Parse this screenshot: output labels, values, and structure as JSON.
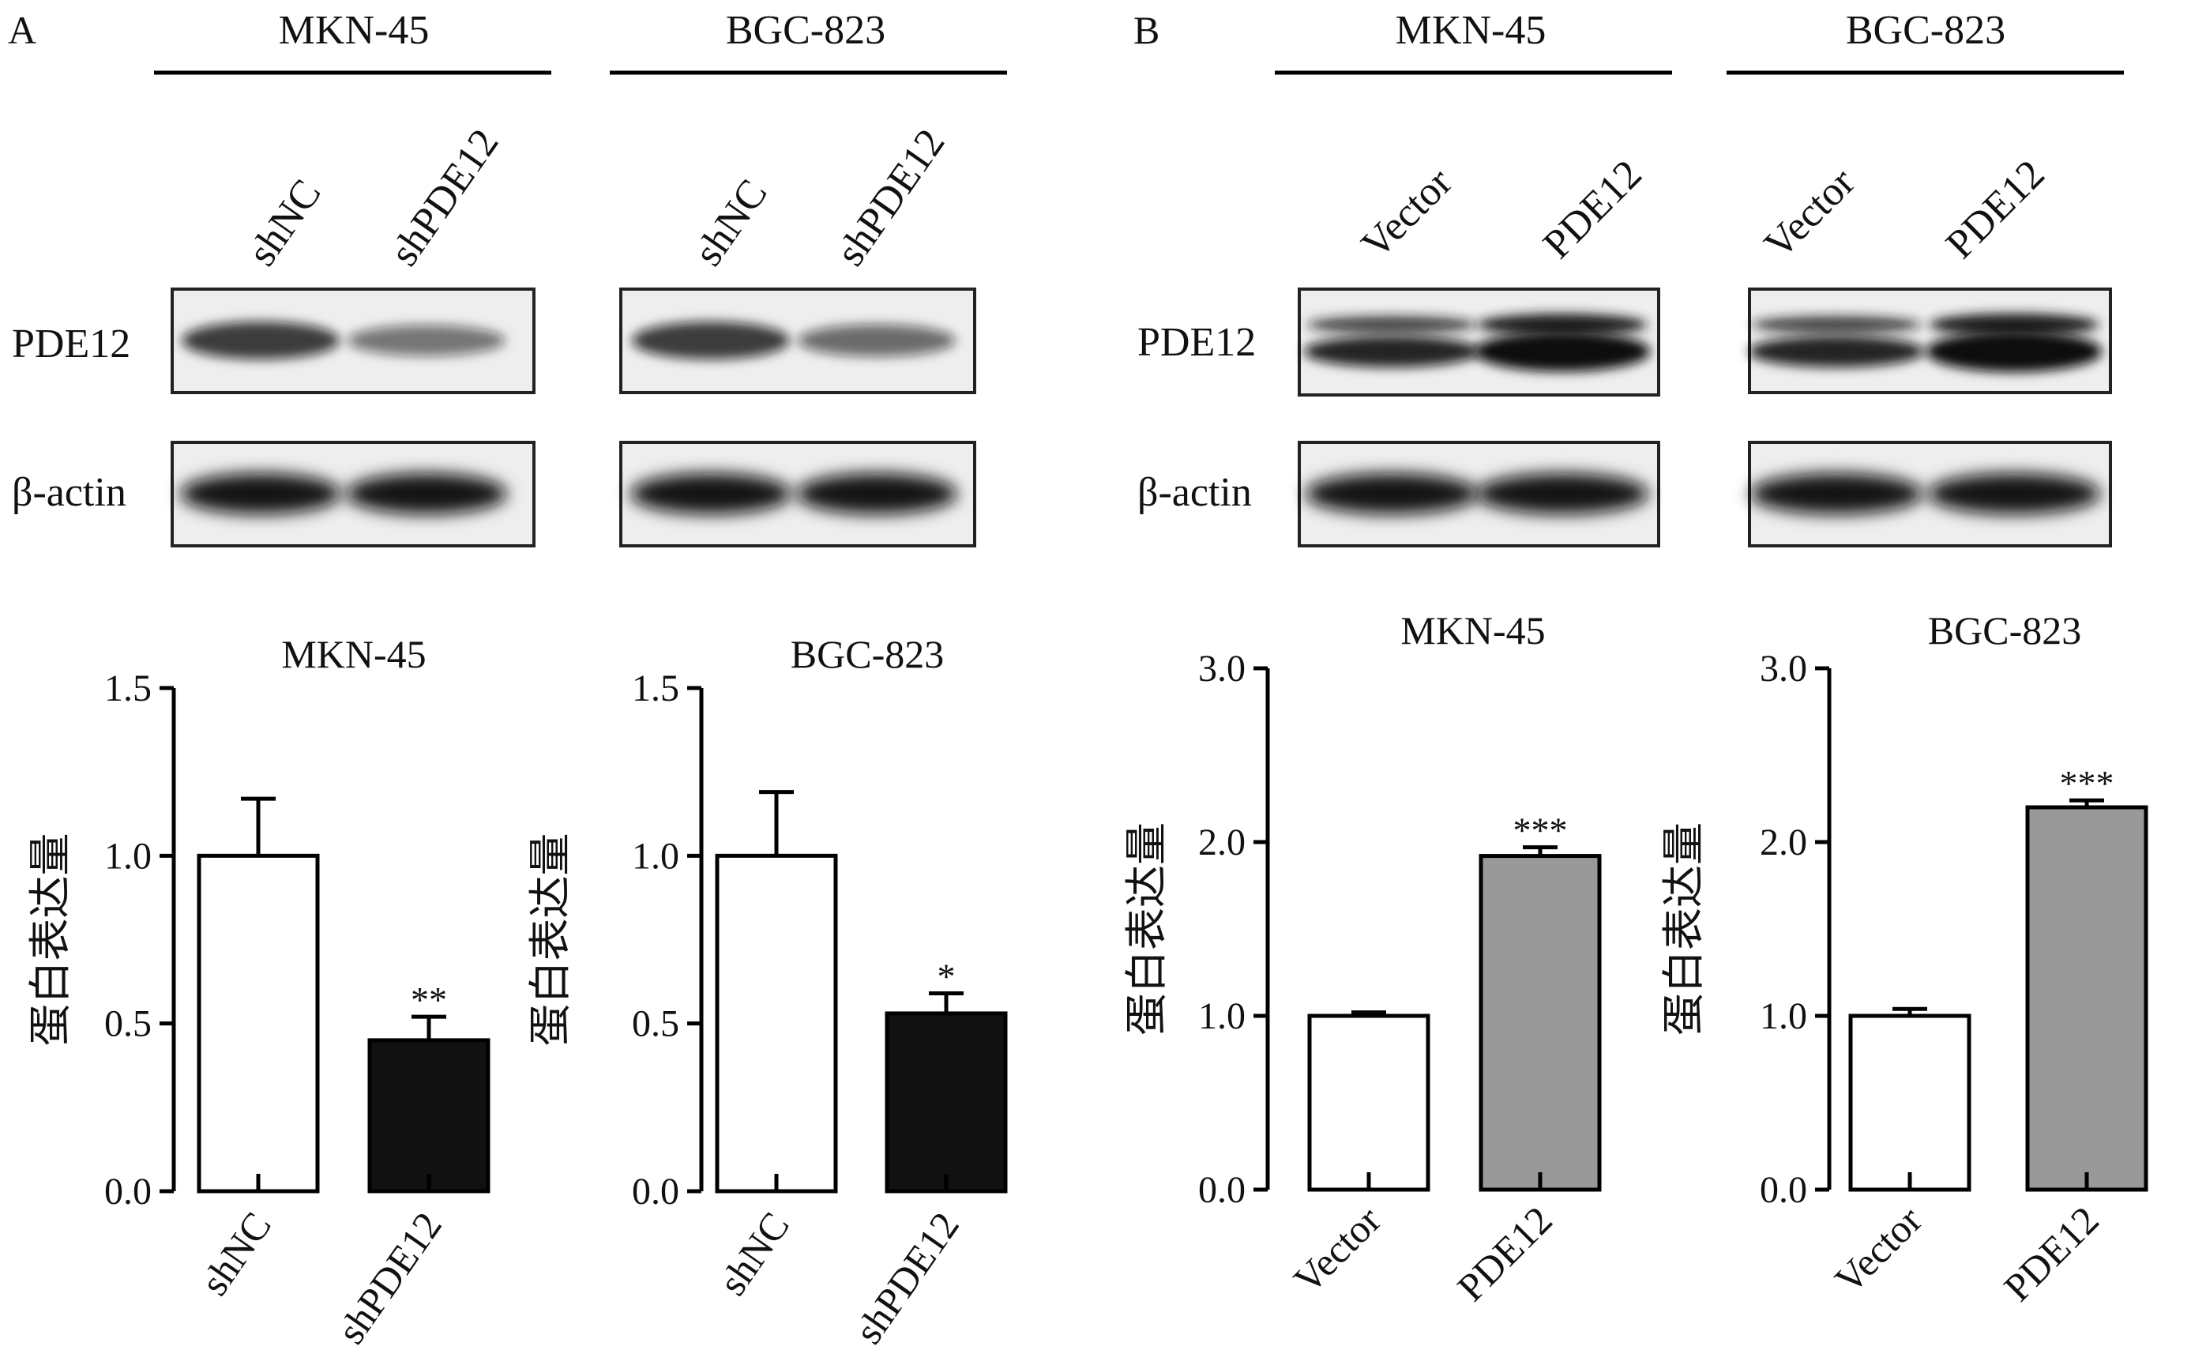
{
  "panels": [
    {
      "letter": "A",
      "cell_lines": [
        {
          "name": "MKN-45",
          "lanes": [
            "shNC",
            "shPDE12"
          ],
          "pde12_intensity": [
            1.0,
            0.45
          ],
          "pde12_doublet": false
        },
        {
          "name": "BGC-823",
          "lanes": [
            "shNC",
            "shPDE12"
          ],
          "pde12_intensity": [
            1.0,
            0.55
          ],
          "pde12_doublet": false
        }
      ]
    },
    {
      "letter": "B",
      "cell_lines": [
        {
          "name": "MKN-45",
          "lanes": [
            "Vector",
            "PDE12"
          ],
          "pde12_intensity": [
            1.0,
            1.9
          ],
          "pde12_doublet": true
        },
        {
          "name": "BGC-823",
          "lanes": [
            "Vector",
            "PDE12"
          ],
          "pde12_intensity": [
            1.0,
            2.2
          ],
          "pde12_doublet": true
        }
      ]
    }
  ],
  "blot_labels": {
    "target": "PDE12",
    "loading": "β-actin"
  },
  "colors": {
    "control_bar": "#ffffff",
    "knockdown_bar": "#111111",
    "overexpression_bar": "#999999",
    "axis": "#000000"
  },
  "chart_data": [
    {
      "type": "bar",
      "title": "MKN-45",
      "ylabel": "蛋白表达量",
      "xlabel": "",
      "ylim": [
        0,
        1.5
      ],
      "yticks": [
        "0.0",
        "0.5",
        "1.0",
        "1.5"
      ],
      "categories": [
        "shNC",
        "shPDE12"
      ],
      "values": [
        1.0,
        0.45
      ],
      "errors": [
        0.17,
        0.07
      ],
      "significance": [
        "",
        "**"
      ],
      "fills": [
        "#ffffff",
        "#111111"
      ]
    },
    {
      "type": "bar",
      "title": "BGC-823",
      "ylabel": "蛋白表达量",
      "xlabel": "",
      "ylim": [
        0,
        1.5
      ],
      "yticks": [
        "0.0",
        "0.5",
        "1.0",
        "1.5"
      ],
      "categories": [
        "shNC",
        "shPDE12"
      ],
      "values": [
        1.0,
        0.53
      ],
      "errors": [
        0.19,
        0.06
      ],
      "significance": [
        "",
        "*"
      ],
      "fills": [
        "#ffffff",
        "#111111"
      ]
    },
    {
      "type": "bar",
      "title": "MKN-45",
      "ylabel": "蛋白表达量",
      "xlabel": "",
      "ylim": [
        0,
        3.0
      ],
      "yticks": [
        "0.0",
        "1.0",
        "2.0",
        "3.0"
      ],
      "categories": [
        "Vector",
        "PDE12"
      ],
      "values": [
        1.0,
        1.92
      ],
      "errors": [
        0.02,
        0.05
      ],
      "significance": [
        "",
        "***"
      ],
      "fills": [
        "#ffffff",
        "#999999"
      ]
    },
    {
      "type": "bar",
      "title": "BGC-823",
      "ylabel": "蛋白表达量",
      "xlabel": "",
      "ylim": [
        0,
        3.0
      ],
      "yticks": [
        "0.0",
        "1.0",
        "2.0",
        "3.0"
      ],
      "categories": [
        "Vector",
        "PDE12"
      ],
      "values": [
        1.0,
        2.2
      ],
      "errors": [
        0.04,
        0.04
      ],
      "significance": [
        "",
        "***"
      ],
      "fills": [
        "#ffffff",
        "#999999"
      ]
    }
  ]
}
